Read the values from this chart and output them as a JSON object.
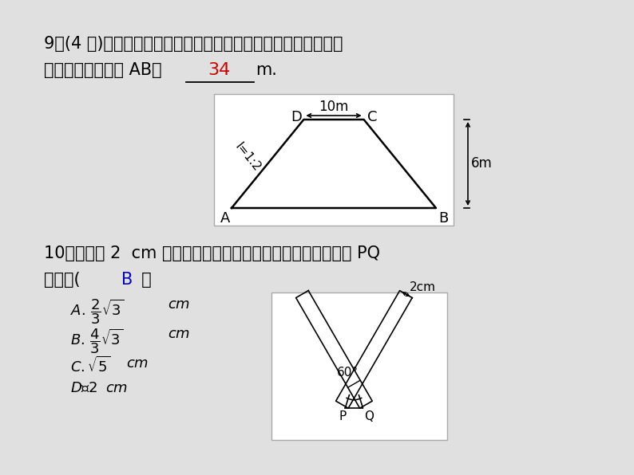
{
  "bg_color": "#e0e0e0",
  "text_color": "#000000",
  "red_color": "#cc0000",
  "blue_color": "#0000cc",
  "q9_line1": "9．(4 分)如图，一铁路路基的横断面为等腰梯形，根据图中数据",
  "q9_line2": "计算路基的下底宽 AB＝",
  "q9_answer": "34",
  "q9_unit": "m.",
  "q10_line1": "10．将宽为 2  cm 的长方形纸条折叠成如图的形状，那么折痕 PQ",
  "q10_line2": "的长是(  ",
  "q10_answer": "B",
  "q10_end": "  ）",
  "trap_label_D": "D",
  "trap_label_C": "C",
  "trap_label_A": "A",
  "trap_label_B": "B",
  "trap_10m": "10m",
  "trap_6m": "6m",
  "trap_slope": "I=1:2",
  "fig2_60": "60°",
  "fig2_2cm": "2cm",
  "fig2_P": "P",
  "fig2_Q": "Q"
}
